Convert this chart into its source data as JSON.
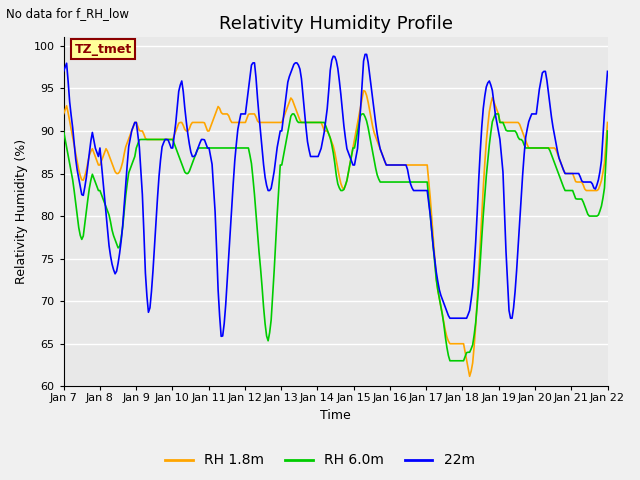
{
  "title": "Relativity Humidity Profile",
  "top_left_text": "No data for f_RH_low",
  "annotation_text": "TZ_tmet",
  "xlabel": "Time",
  "ylabel": "Relativity Humidity (%)",
  "ylim": [
    60,
    101
  ],
  "yticks": [
    60,
    65,
    70,
    75,
    80,
    85,
    90,
    95,
    100
  ],
  "xtick_labels": [
    "Jan 7",
    "Jan 8",
    "Jan 9",
    "Jan 10",
    "Jan 11",
    "Jan 12",
    "Jan 13",
    "Jan 14",
    "Jan 15",
    "Jan 16",
    "Jan 17",
    "Jan 18",
    "Jan 19",
    "Jan 20",
    "Jan 21",
    "Jan 22"
  ],
  "legend_labels": [
    "RH 1.8m",
    "RH 6.0m",
    "22m"
  ],
  "colors": {
    "rh18": "#FFA500",
    "rh60": "#00CC00",
    "rh22m": "#0000FF"
  },
  "fig_bg_color": "#F0F0F0",
  "plot_bg_color": "#E8E8E8",
  "grid_color": "#FFFFFF",
  "title_fontsize": 13,
  "label_fontsize": 9,
  "tick_fontsize": 8,
  "annotation_bg": "#FFFF99",
  "annotation_border": "#8B0000",
  "annotation_color": "#8B0000",
  "linewidth": 1.2
}
